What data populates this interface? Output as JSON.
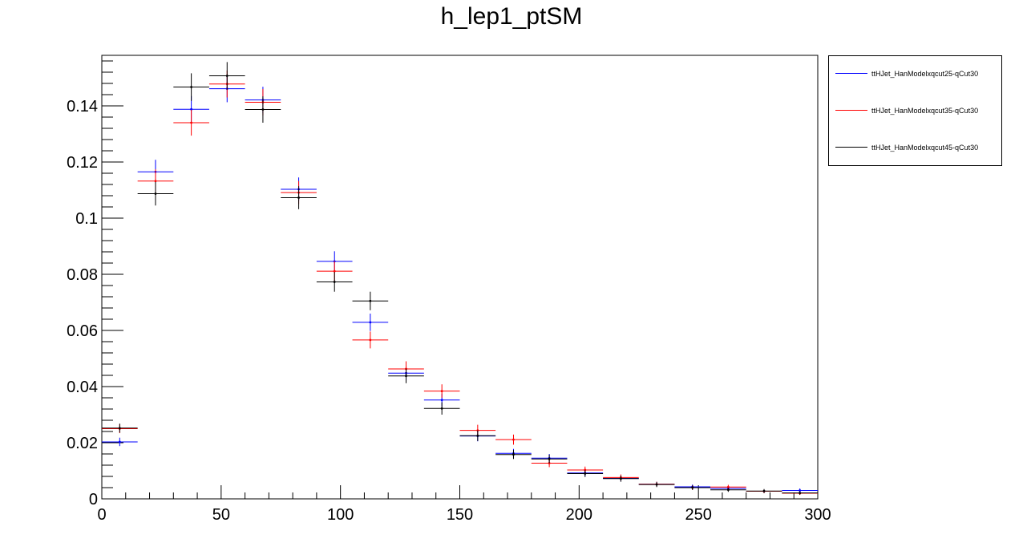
{
  "chart_data": {
    "type": "scatter",
    "title": "h_lep1_ptSM",
    "xlabel": "",
    "ylabel": "",
    "xlim": [
      0,
      300
    ],
    "ylim": [
      0,
      0.158
    ],
    "x_ticks": [
      "0",
      "50",
      "100",
      "150",
      "200",
      "250",
      "300"
    ],
    "y_ticks": [
      "0",
      "0.02",
      "0.04",
      "0.06",
      "0.08",
      "0.1",
      "0.12",
      "0.14"
    ],
    "bin_width": 15,
    "x": [
      7.5,
      22.5,
      37.5,
      52.5,
      67.5,
      82.5,
      97.5,
      112.5,
      127.5,
      142.5,
      157.5,
      172.5,
      187.5,
      202.5,
      217.5,
      232.5,
      247.5,
      262.5,
      277.5,
      292.5
    ],
    "series": [
      {
        "name": "ttHJet_HanModelxqcut25-qCut30",
        "color": "#0000ff",
        "values": [
          0.0203,
          0.1165,
          0.1388,
          0.1461,
          0.1421,
          0.1103,
          0.0846,
          0.0629,
          0.0448,
          0.0352,
          0.0224,
          0.0162,
          0.0145,
          0.0092,
          0.0073,
          0.0052,
          0.0043,
          0.0037,
          0.0027,
          0.003
        ],
        "errors": [
          0.0015,
          0.0043,
          0.0047,
          0.0048,
          0.0047,
          0.0042,
          0.0036,
          0.0031,
          0.0027,
          0.0023,
          0.0019,
          0.0016,
          0.0015,
          0.0012,
          0.0011,
          0.0009,
          0.0008,
          0.0008,
          0.0007,
          0.0007
        ]
      },
      {
        "name": "ttHJet_HanModelxqcut35-qCut30",
        "color": "#ff0000",
        "values": [
          0.025,
          0.1132,
          0.134,
          0.1478,
          0.1413,
          0.1091,
          0.0811,
          0.0566,
          0.0463,
          0.0384,
          0.0244,
          0.0211,
          0.0127,
          0.0103,
          0.0076,
          0.0052,
          0.004,
          0.0042,
          0.0027,
          0.002
        ],
        "errors": [
          0.0016,
          0.0042,
          0.0046,
          0.0048,
          0.0047,
          0.0041,
          0.0036,
          0.003,
          0.0027,
          0.0024,
          0.002,
          0.0018,
          0.0014,
          0.0012,
          0.0011,
          0.0009,
          0.0008,
          0.0008,
          0.0007,
          0.0006
        ]
      },
      {
        "name": "ttHJet_HanModelxqcut45-qCut30",
        "color": "#000000",
        "values": [
          0.0252,
          0.1087,
          0.1467,
          0.1507,
          0.1387,
          0.1073,
          0.0773,
          0.0705,
          0.0438,
          0.0322,
          0.0225,
          0.0158,
          0.0142,
          0.009,
          0.0072,
          0.0051,
          0.004,
          0.0032,
          0.0028,
          0.0021
        ],
        "errors": [
          0.0016,
          0.0042,
          0.0049,
          0.0049,
          0.0047,
          0.0041,
          0.0035,
          0.0033,
          0.0026,
          0.0022,
          0.0019,
          0.0016,
          0.0015,
          0.0012,
          0.0011,
          0.0009,
          0.0008,
          0.0007,
          0.0007,
          0.0006
        ]
      }
    ],
    "grid": false,
    "legend_position": "outside-right"
  }
}
